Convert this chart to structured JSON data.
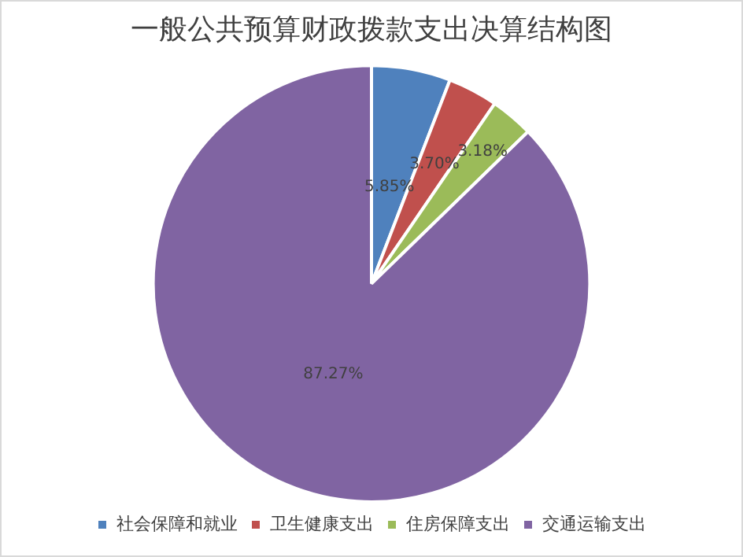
{
  "chart_data": {
    "type": "pie",
    "title": "一般公共预算财政拨款支出决算结构图",
    "categories": [
      "社会保障和就业",
      "卫生健康支出",
      "住房保障支出",
      "交通运输支出"
    ],
    "values": [
      5.85,
      3.7,
      3.18,
      87.27
    ],
    "colors": [
      "#4f81bd",
      "#c0504d",
      "#9bbb59",
      "#8064a2"
    ],
    "value_labels": [
      "5.85%",
      "3.70%",
      "3.18%",
      "87.27%"
    ],
    "legend": "bottom"
  }
}
